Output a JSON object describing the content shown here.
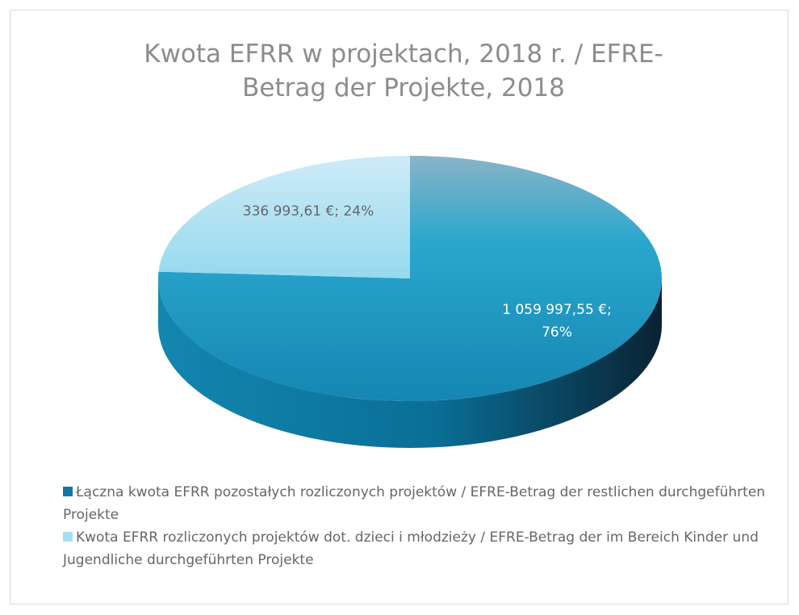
{
  "chart_data": {
    "type": "pie",
    "title": "Kwota EFRR w projektach, 2018 r. / EFRE-Betrag der Projekte, 2018",
    "categories": [
      "Łączna kwota EFRR pozostałych rozliczonych projektów / EFRE-Betrag der restlichen durchgeführten Projekte",
      "Kwota EFRR rozliczonych projektów dot. dzieci i młodzieży / EFRE-Betrag der im Bereich Kinder und Jugendliche durchgeführten Projekte"
    ],
    "values": [
      1059997.55,
      336993.61
    ],
    "value_labels": [
      "1 059 997,55 €; 76%",
      "336 993,61 €; 24%"
    ],
    "colors": [
      "#1a9dc6",
      "#a6def1"
    ],
    "legend": "bottom"
  }
}
